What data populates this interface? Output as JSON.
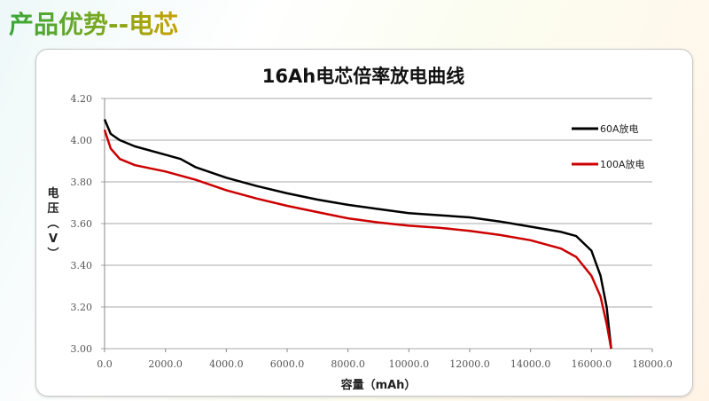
{
  "slide_title": "产品优势--电芯",
  "chart_data": {
    "type": "line",
    "title": "16Ah电芯倍率放电曲线",
    "xlabel": "容量（mAh）",
    "ylabel_chars": [
      "电",
      "压",
      "︵",
      "V",
      "︶"
    ],
    "xlim": [
      0,
      18000
    ],
    "ylim": [
      3.0,
      4.2
    ],
    "xticks": [
      0,
      2000,
      4000,
      6000,
      8000,
      10000,
      12000,
      14000,
      16000,
      18000
    ],
    "xtick_labels": [
      "0.0",
      "2000.0",
      "4000.0",
      "6000.0",
      "8000.0",
      "10000.0",
      "12000.0",
      "14000.0",
      "16000.0",
      "18000.0"
    ],
    "yticks": [
      3.0,
      3.2,
      3.4,
      3.6,
      3.8,
      4.0,
      4.2
    ],
    "ytick_labels": [
      "3.00",
      "3.20",
      "3.40",
      "3.60",
      "3.80",
      "4.00",
      "4.20"
    ],
    "grid": true,
    "legend_position": "top-right",
    "series": [
      {
        "name": "60A放电",
        "color": "#000000",
        "x": [
          0,
          200,
          500,
          1000,
          2000,
          2500,
          3000,
          4000,
          5000,
          6000,
          7000,
          8000,
          9000,
          10000,
          11000,
          12000,
          13000,
          14000,
          15000,
          15500,
          16000,
          16300,
          16500,
          16650
        ],
        "y": [
          4.1,
          4.03,
          4.0,
          3.97,
          3.93,
          3.91,
          3.87,
          3.82,
          3.78,
          3.745,
          3.715,
          3.69,
          3.67,
          3.65,
          3.64,
          3.63,
          3.61,
          3.585,
          3.56,
          3.54,
          3.47,
          3.35,
          3.2,
          3.0
        ]
      },
      {
        "name": "100A放电",
        "color": "#cc0000",
        "x": [
          0,
          200,
          500,
          1000,
          2000,
          3000,
          4000,
          5000,
          6000,
          7000,
          8000,
          9000,
          10000,
          11000,
          12000,
          13000,
          14000,
          15000,
          15500,
          16000,
          16300,
          16500,
          16650
        ],
        "y": [
          4.05,
          3.96,
          3.91,
          3.88,
          3.85,
          3.81,
          3.76,
          3.72,
          3.685,
          3.655,
          3.625,
          3.605,
          3.59,
          3.58,
          3.565,
          3.545,
          3.52,
          3.48,
          3.44,
          3.35,
          3.25,
          3.12,
          3.0
        ]
      }
    ]
  }
}
